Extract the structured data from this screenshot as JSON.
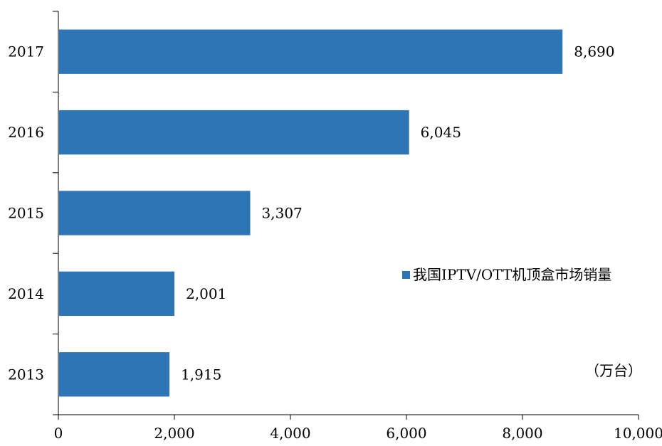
{
  "chart_data": {
    "type": "bar",
    "orientation": "horizontal",
    "categories": [
      "2013",
      "2014",
      "2015",
      "2016",
      "2017"
    ],
    "series": [
      {
        "name": "我国IPTV/OTT机顶盒市场销量",
        "values": [
          1915,
          2001,
          3307,
          6045,
          8690
        ],
        "value_labels": [
          "1,915",
          "2,001",
          "3,307",
          "6,045",
          "8,690"
        ]
      }
    ],
    "xlim": [
      0,
      10000
    ],
    "x_ticks": [
      0,
      2000,
      4000,
      6000,
      8000,
      10000
    ],
    "x_tick_labels": [
      "0",
      "2,000",
      "4,000",
      "6,000",
      "8,000",
      "10,000"
    ],
    "unit_label": "（万台）",
    "grid": false,
    "legend_position": "right-middle",
    "colors": {
      "bar": "#2E75B6",
      "axis": "#000000"
    }
  }
}
